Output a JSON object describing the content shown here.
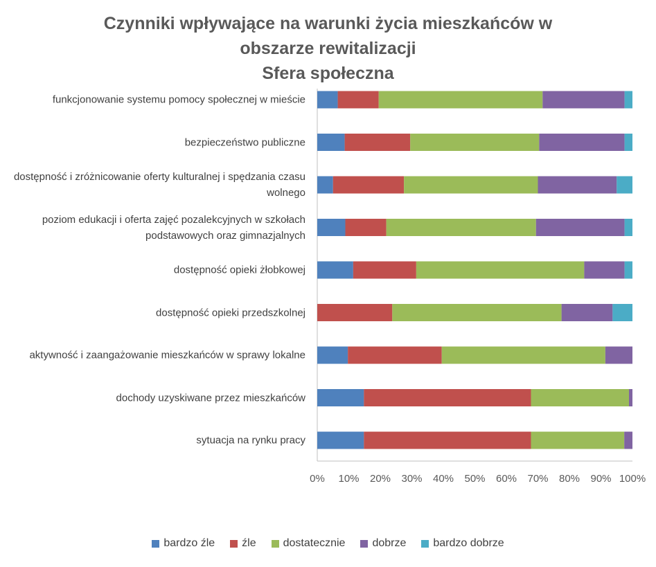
{
  "chart_data": {
    "type": "bar",
    "orientation": "horizontal",
    "stacked": "percent",
    "title": [
      "Czynniki wpływające na warunki życia mieszkańców w",
      "obszarze rewitalizacji",
      "Sfera społeczna"
    ],
    "categories": [
      "funkcjonowanie systemu pomocy społecznej w mieście",
      "bezpieczeństwo publiczne",
      "dostępność i zróżnicowanie oferty kulturalnej i spędzania czasu wolnego",
      "poziom edukacji i oferta zajęć pozalekcyjnych w szkołach podstawowych oraz gimnazjalnych",
      "dostępność opieki żłobkowej",
      "dostępność opieki przedszkolnej",
      "aktywność i zaangażowanie mieszkańców w sprawy lokalne",
      "dochody uzyskiwane przez mieszkańców",
      "sytuacja na rynku pracy"
    ],
    "series": [
      {
        "name": "bardzo źle",
        "color": "#4F81BD",
        "values": [
          6.5,
          8.7,
          5.0,
          8.9,
          11.4,
          0.0,
          9.7,
          14.8,
          14.8
        ]
      },
      {
        "name": "źle",
        "color": "#C0504D",
        "values": [
          13.0,
          20.8,
          22.5,
          13.0,
          20.0,
          23.8,
          29.8,
          53.0,
          53.0
        ]
      },
      {
        "name": "dostatecznie",
        "color": "#9BBB59",
        "values": [
          52.0,
          40.9,
          42.5,
          47.5,
          53.3,
          53.7,
          51.9,
          31.1,
          29.6
        ]
      },
      {
        "name": "dobrze",
        "color": "#8064A2",
        "values": [
          26.0,
          27.1,
          25.0,
          28.1,
          12.8,
          16.2,
          8.6,
          1.1,
          2.6
        ]
      },
      {
        "name": "bardzo dobrze",
        "color": "#4BACC6",
        "values": [
          2.5,
          2.5,
          5.0,
          2.5,
          2.5,
          6.3,
          0.0,
          0.0,
          0.0
        ]
      }
    ],
    "xlim": [
      0,
      100
    ],
    "xticks": [
      "0%",
      "10%",
      "20%",
      "30%",
      "40%",
      "50%",
      "60%",
      "70%",
      "80%",
      "90%",
      "100%"
    ],
    "grid": false,
    "legend": "bottom"
  }
}
